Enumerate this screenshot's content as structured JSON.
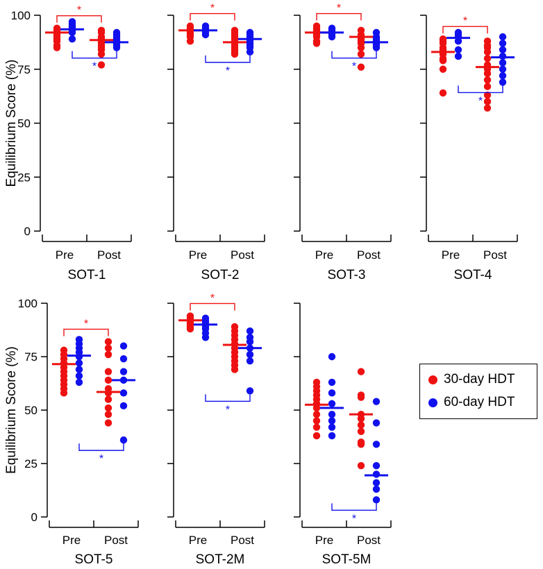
{
  "chart_data": {
    "type": "scatter",
    "ylabel": "Equilibrium Score (%)",
    "ylim": [
      0,
      100
    ],
    "yticks": [
      0,
      25,
      50,
      75,
      100
    ],
    "xticks": [
      "Pre",
      "Post"
    ],
    "legend": [
      {
        "label": "30-day HDT",
        "color": "#ee1111"
      },
      {
        "label": "60-day HDT",
        "color": "#1111ee"
      }
    ],
    "legend_position": "right",
    "significance_marker": "*",
    "panels": [
      {
        "title": "SOT-1",
        "series": {
          "30-day HDT": {
            "pre": [
              94,
              93,
              92,
              91,
              90,
              89,
              88,
              86,
              85
            ],
            "pre_mean": 92,
            "post": [
              93,
              92,
              90,
              89,
              88,
              87,
              86,
              85,
              84,
              82,
              77
            ],
            "post_mean": 88.5
          },
          "60-day HDT": {
            "pre": [
              97,
              96,
              95,
              95,
              94,
              93,
              92,
              89
            ],
            "pre_mean": 93.5,
            "post": [
              92,
              91,
              90,
              89,
              88,
              87,
              86,
              85
            ],
            "post_mean": 87.5
          }
        },
        "brackets": [
          {
            "group": "30-day HDT",
            "side": "top"
          },
          {
            "group": "60-day HDT",
            "side": "bottom"
          }
        ]
      },
      {
        "title": "SOT-2",
        "series": {
          "30-day HDT": {
            "pre": [
              95,
              94,
              93,
              92,
              91,
              90,
              88
            ],
            "pre_mean": 93,
            "post": [
              93,
              92,
              91,
              90,
              89,
              88,
              87,
              86,
              85,
              84,
              83,
              82
            ],
            "post_mean": 87.5
          },
          "60-day HDT": {
            "pre": [
              95,
              94,
              93,
              92,
              91
            ],
            "pre_mean": 93,
            "post": [
              92,
              91,
              90,
              89,
              88,
              87,
              86,
              85,
              83
            ],
            "post_mean": 89
          }
        },
        "brackets": [
          {
            "group": "30-day HDT",
            "side": "top"
          },
          {
            "group": "60-day HDT",
            "side": "bottom"
          }
        ]
      },
      {
        "title": "SOT-3",
        "series": {
          "30-day HDT": {
            "pre": [
              95,
              94,
              93,
              92,
              91,
              90,
              88,
              87
            ],
            "pre_mean": 92,
            "post": [
              93,
              91,
              89,
              88,
              87,
              85,
              82,
              76
            ],
            "post_mean": 90
          },
          "60-day HDT": {
            "pre": [
              94,
              93,
              92,
              91,
              90
            ],
            "pre_mean": 92,
            "post": [
              92,
              90,
              89,
              88,
              87,
              86,
              85
            ],
            "post_mean": 87.5
          }
        },
        "brackets": [
          {
            "group": "30-day HDT",
            "side": "top"
          },
          {
            "group": "60-day HDT",
            "side": "bottom"
          }
        ]
      },
      {
        "title": "SOT-4",
        "series": {
          "30-day HDT": {
            "pre": [
              89,
              88,
              87,
              85,
              84,
              83,
              82,
              80,
              79,
              75,
              64
            ],
            "pre_mean": 83,
            "post": [
              88,
              86,
              85,
              83,
              80,
              77,
              75,
              73,
              70,
              67,
              63,
              60,
              57
            ],
            "post_mean": 76
          },
          "60-day HDT": {
            "pre": [
              92,
              91,
              90,
              88,
              84,
              81
            ],
            "pre_mean": 89.5,
            "post": [
              90,
              87,
              84,
              81,
              78,
              75,
              72,
              69
            ],
            "post_mean": 80.5
          }
        },
        "brackets": [
          {
            "group": "30-day HDT",
            "side": "top"
          },
          {
            "group": "60-day HDT",
            "side": "bottom"
          }
        ]
      },
      {
        "title": "SOT-5",
        "series": {
          "30-day HDT": {
            "pre": [
              78,
              76,
              74,
              72,
              70,
              68,
              66,
              64,
              62,
              60,
              58
            ],
            "pre_mean": 71.5,
            "post": [
              82,
              79,
              76,
              68,
              64,
              60,
              58,
              55,
              51,
              48,
              44
            ],
            "post_mean": 58.5
          },
          "60-day HDT": {
            "pre": [
              83,
              81,
              79,
              77,
              75,
              72,
              69,
              66,
              63
            ],
            "pre_mean": 75.5,
            "post": [
              80,
              74,
              68,
              64,
              58,
              52,
              36
            ],
            "post_mean": 64
          }
        },
        "brackets": [
          {
            "group": "30-day HDT",
            "side": "top"
          },
          {
            "group": "60-day HDT",
            "side": "bottom"
          }
        ]
      },
      {
        "title": "SOT-2M",
        "series": {
          "30-day HDT": {
            "pre": [
              94,
              93,
              92,
              91,
              90,
              89,
              88
            ],
            "pre_mean": 92,
            "post": [
              89,
              87,
              85,
              83,
              81,
              79,
              77,
              75,
              73,
              71,
              69
            ],
            "post_mean": 80.5
          },
          "60-day HDT": {
            "pre": [
              93,
              92,
              91,
              90,
              89,
              88,
              86,
              84
            ],
            "pre_mean": 90,
            "post": [
              87,
              84,
              82,
              79,
              76,
              73,
              59
            ],
            "post_mean": 79
          }
        },
        "brackets": [
          {
            "group": "30-day HDT",
            "side": "top"
          },
          {
            "group": "60-day HDT",
            "side": "bottom"
          }
        ]
      },
      {
        "title": "SOT-5M",
        "series": {
          "30-day HDT": {
            "pre": [
              63,
              61,
              59,
              57,
              55,
              53,
              51,
              48,
              45,
              42,
              38
            ],
            "pre_mean": 52.5,
            "post": [
              68,
              57,
              56,
              48,
              46,
              43,
              40,
              35,
              34,
              24
            ],
            "post_mean": 48
          },
          "60-day HDT": {
            "pre": [
              75,
              63,
              58,
              53,
              48,
              45,
              42,
              38
            ],
            "pre_mean": 51,
            "post": [
              54,
              44,
              34,
              24,
              20,
              16,
              13,
              8
            ],
            "post_mean": 19.5
          }
        },
        "brackets": [
          {
            "group": "60-day HDT",
            "side": "bottom"
          }
        ]
      }
    ]
  }
}
